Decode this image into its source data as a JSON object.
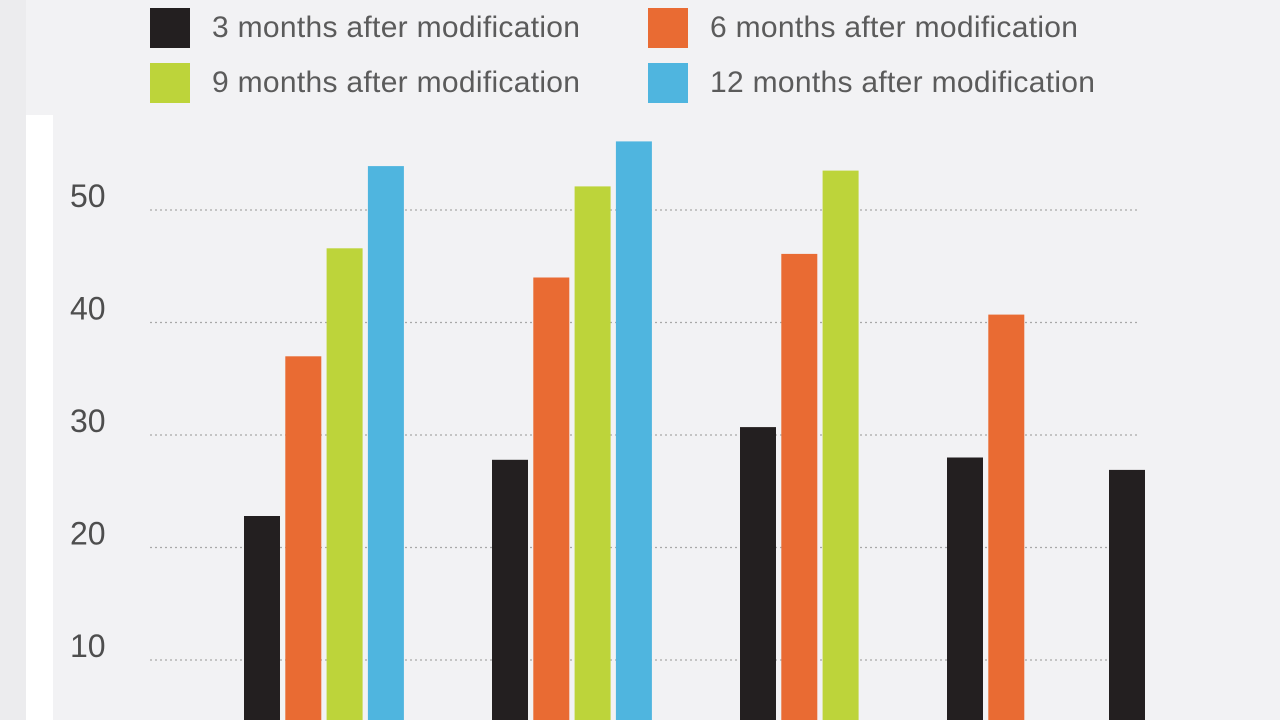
{
  "colors": {
    "series_1": "#231f20",
    "series_2": "#e96b33",
    "series_3": "#bdd43a",
    "series_4": "#4fb5df",
    "grid": "#a8a8a8"
  },
  "chart_data": {
    "type": "bar",
    "title": "",
    "xlabel": "",
    "ylabel": "",
    "categories": [
      "",
      "",
      "",
      ""
    ],
    "ylim": [
      0,
      57
    ],
    "yticks": [
      10,
      20,
      30,
      40,
      50
    ],
    "grid": true,
    "legend_position": "top",
    "series": [
      {
        "name": "3 months after modification",
        "values": [
          22.8,
          27.8,
          30.7,
          28.0
        ]
      },
      {
        "name": "6 months after modification",
        "values": [
          37.0,
          44.0,
          46.1,
          40.7
        ]
      },
      {
        "name": "9 months after modification",
        "values": [
          46.6,
          52.1,
          53.5,
          null
        ]
      },
      {
        "name": "12 months after modification",
        "values": [
          53.9,
          56.1,
          null,
          null
        ]
      }
    ],
    "extra_bars": [
      {
        "series": "3 months after modification",
        "value": 26.9
      }
    ]
  }
}
